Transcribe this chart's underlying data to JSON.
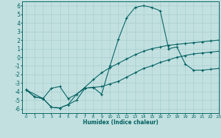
{
  "xlabel": "Humidex (Indice chaleur)",
  "xlim": [
    -0.5,
    23
  ],
  "ylim": [
    -6.5,
    6.5
  ],
  "xticks": [
    0,
    1,
    2,
    3,
    4,
    5,
    6,
    7,
    8,
    9,
    10,
    11,
    12,
    13,
    14,
    15,
    16,
    17,
    18,
    19,
    20,
    21,
    22,
    23
  ],
  "yticks": [
    -6,
    -5,
    -4,
    -3,
    -2,
    -1,
    0,
    1,
    2,
    3,
    4,
    5,
    6
  ],
  "background_color": "#c2e0e0",
  "grid_color": "#a8cccc",
  "line_color": "#006060",
  "line1_x": [
    0,
    1,
    2,
    3,
    4,
    5,
    6,
    7,
    8,
    9,
    10,
    11,
    12,
    13,
    14,
    15,
    16,
    17,
    18,
    19,
    20,
    21,
    22,
    23
  ],
  "line1_y": [
    -3.8,
    -4.6,
    -4.8,
    -5.8,
    -5.9,
    -5.5,
    -5.0,
    -3.6,
    -3.5,
    -4.3,
    -1.0,
    2.1,
    4.6,
    5.8,
    6.0,
    5.8,
    5.4,
    1.0,
    1.2,
    -0.8,
    -1.5,
    -1.5,
    -1.4,
    -1.3
  ],
  "line2_x": [
    0,
    2,
    3,
    4,
    5,
    6,
    7,
    8,
    9,
    10,
    11,
    12,
    13,
    14,
    15,
    16,
    17,
    18,
    19,
    20,
    21,
    22,
    23
  ],
  "line2_y": [
    -3.8,
    -4.8,
    -3.6,
    -3.4,
    -4.8,
    -4.3,
    -3.5,
    -2.6,
    -1.8,
    -1.2,
    -0.7,
    -0.2,
    0.3,
    0.7,
    1.0,
    1.2,
    1.4,
    1.5,
    1.6,
    1.7,
    1.8,
    1.9,
    2.0
  ],
  "line3_x": [
    0,
    1,
    2,
    3,
    4,
    5,
    6,
    7,
    8,
    9,
    10,
    11,
    12,
    13,
    14,
    15,
    16,
    17,
    18,
    19,
    20,
    21,
    22,
    23
  ],
  "line3_y": [
    -3.8,
    -4.6,
    -4.8,
    -5.8,
    -5.9,
    -5.5,
    -4.3,
    -3.6,
    -3.5,
    -3.4,
    -3.1,
    -2.8,
    -2.3,
    -1.8,
    -1.3,
    -1.0,
    -0.6,
    -0.3,
    0.0,
    0.2,
    0.4,
    0.5,
    0.6,
    0.7
  ]
}
